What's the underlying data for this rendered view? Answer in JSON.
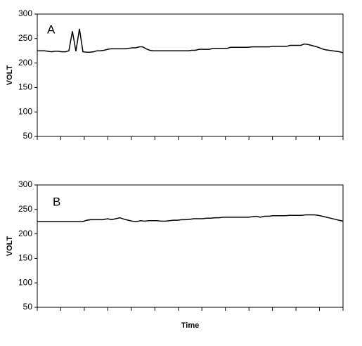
{
  "chart_data": [
    {
      "type": "line",
      "annotation": "A",
      "ylabel": "VOLT",
      "ylim": [
        50,
        300
      ],
      "yticks": [
        50,
        100,
        150,
        200,
        250,
        300
      ],
      "grid": false,
      "color": "#000000",
      "values": [
        225,
        225,
        225,
        224,
        223,
        224,
        224,
        223,
        223,
        225,
        265,
        224,
        270,
        223,
        222,
        222,
        223,
        225,
        225,
        226,
        228,
        229,
        229,
        229,
        229,
        229,
        230,
        231,
        231,
        233,
        233,
        229,
        226,
        225,
        225,
        225,
        225,
        225,
        225,
        225,
        225,
        225,
        225,
        225,
        226,
        226,
        228,
        228,
        228,
        228,
        230,
        230,
        230,
        230,
        230,
        232,
        232,
        232,
        232,
        232,
        232,
        233,
        233,
        233,
        233,
        233,
        233,
        234,
        234,
        234,
        234,
        234,
        236,
        236,
        236,
        236,
        239,
        238,
        236,
        234,
        232,
        229,
        227,
        226,
        225,
        224,
        223,
        221
      ]
    },
    {
      "type": "line",
      "annotation": "B",
      "ylabel": "VOLT",
      "xlabel": "Time",
      "ylim": [
        50,
        300
      ],
      "yticks": [
        50,
        100,
        150,
        200,
        250,
        300
      ],
      "grid": false,
      "color": "#000000",
      "values": [
        225,
        225,
        225,
        225,
        225,
        225,
        225,
        225,
        225,
        225,
        225,
        225,
        228,
        229,
        229,
        229,
        229,
        231,
        229,
        231,
        233,
        230,
        228,
        226,
        225,
        227,
        226,
        227,
        227,
        227,
        226,
        226,
        227,
        228,
        228,
        229,
        229,
        230,
        231,
        231,
        231,
        232,
        232,
        233,
        233,
        234,
        234,
        234,
        234,
        234,
        234,
        234,
        235,
        236,
        234,
        236,
        236,
        237,
        237,
        237,
        237,
        238,
        238,
        238,
        238,
        239,
        239,
        239,
        238,
        236,
        234,
        232,
        230,
        228,
        226
      ]
    }
  ]
}
